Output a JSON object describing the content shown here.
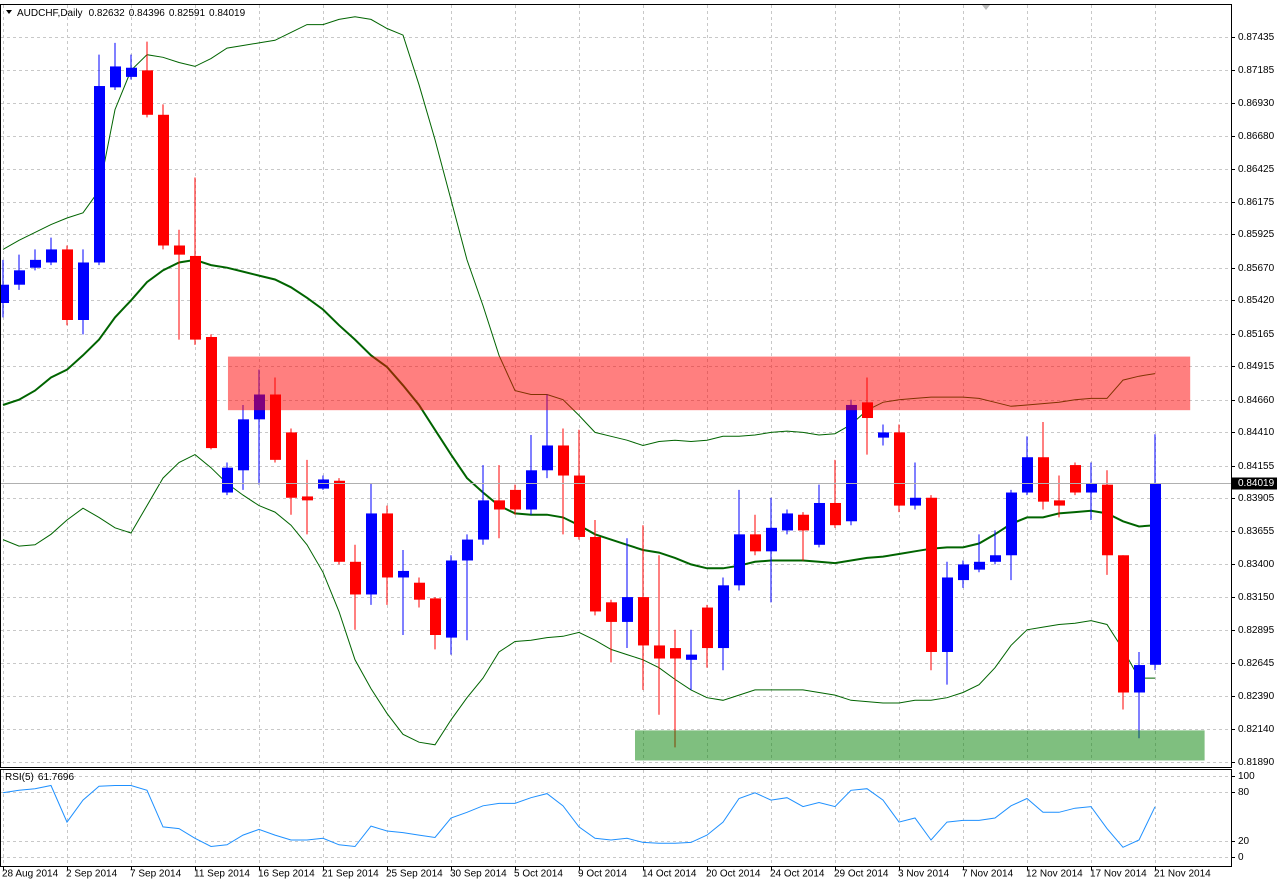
{
  "chart_data": {
    "type": "candlestick",
    "title": "AUDCHF,Daily",
    "up_color": "#0000ff",
    "down_color": "#ff0000",
    "grid": true,
    "categories": [
      "28 Aug 2014",
      null,
      null,
      null,
      "2 Sep 2014",
      null,
      null,
      null,
      "7 Sep 2014",
      null,
      null,
      null,
      "11 Sep 2014",
      null,
      null,
      null,
      "16 Sep 2014",
      null,
      null,
      null,
      "21 Sep 2014",
      null,
      null,
      null,
      "25 Sep 2014",
      null,
      null,
      null,
      "30 Sep 2014",
      null,
      null,
      null,
      "5 Oct 2014",
      null,
      null,
      null,
      "9 Oct 2014",
      null,
      null,
      null,
      "14 Oct 2014",
      null,
      null,
      null,
      "20 Oct 2014",
      null,
      null,
      null,
      "24 Oct 2014",
      null,
      null,
      null,
      "29 Oct 2014",
      null,
      null,
      null,
      "3 Nov 2014",
      null,
      null,
      null,
      "7 Nov 2014",
      null,
      null,
      null,
      "12 Nov 2014",
      null,
      null,
      null,
      "17 Nov 2014",
      null,
      null,
      null,
      "21 Nov 2014"
    ],
    "open": [
      0.854,
      0.8554,
      0.8567,
      0.8571,
      0.8581,
      0.8527,
      0.8571,
      0.8705,
      0.8713,
      0.8718,
      0.8684,
      0.8584,
      0.8576,
      0.8514,
      0.8395,
      0.8412,
      0.8451,
      0.847,
      0.8441,
      0.8392,
      0.8398,
      0.8404,
      0.8342,
      0.8317,
      0.8379,
      0.833,
      0.8326,
      0.8314,
      0.8284,
      0.8343,
      0.8359,
      0.8389,
      0.8397,
      0.8382,
      0.8412,
      0.8431,
      0.8408,
      0.8361,
      0.8311,
      0.8296,
      0.8315,
      0.8278,
      0.8276,
      0.8267,
      0.8307,
      0.8276,
      0.8324,
      0.8363,
      0.835,
      0.8366,
      0.8378,
      0.8355,
      0.8387,
      0.8373,
      0.8464,
      0.8437,
      0.8441,
      0.8385,
      0.8391,
      0.8273,
      0.8328,
      0.8336,
      0.8342,
      0.8347,
      0.8395,
      0.8422,
      0.8389,
      0.8416,
      0.8395,
      0.8401,
      0.8347,
      0.8242,
      0.82632
    ],
    "high": [
      0.8573,
      0.8577,
      0.8581,
      0.859,
      0.8584,
      0.8581,
      0.873,
      0.8739,
      0.873,
      0.874,
      0.8692,
      0.8596,
      0.8636,
      0.8516,
      0.8418,
      0.8462,
      0.8489,
      0.8483,
      0.8444,
      0.842,
      0.8408,
      0.8406,
      0.8355,
      0.8402,
      0.8385,
      0.8351,
      0.833,
      0.8315,
      0.8347,
      0.8363,
      0.8416,
      0.8416,
      0.8401,
      0.8439,
      0.847,
      0.8444,
      0.8443,
      0.8374,
      0.8313,
      0.836,
      0.837,
      0.8347,
      0.829,
      0.829,
      0.8309,
      0.833,
      0.8397,
      0.8378,
      0.8391,
      0.8382,
      0.838,
      0.8401,
      0.842,
      0.8466,
      0.8483,
      0.8447,
      0.8447,
      0.8418,
      0.8393,
      0.8342,
      0.8343,
      0.8363,
      0.8366,
      0.8397,
      0.8438,
      0.8449,
      0.8408,
      0.8418,
      0.8418,
      0.8412,
      0.8347,
      0.8273,
      0.84396
    ],
    "low": [
      0.8529,
      0.855,
      0.8565,
      0.8569,
      0.8523,
      0.8516,
      0.8569,
      0.8703,
      0.8711,
      0.8682,
      0.8581,
      0.8512,
      0.8508,
      0.8428,
      0.8393,
      0.8397,
      0.8401,
      0.8418,
      0.8378,
      0.8363,
      0.8397,
      0.834,
      0.829,
      0.8309,
      0.8309,
      0.8286,
      0.8307,
      0.8275,
      0.8271,
      0.8282,
      0.8355,
      0.836,
      0.8378,
      0.8378,
      0.8406,
      0.8363,
      0.8359,
      0.8301,
      0.8265,
      0.8276,
      0.8244,
      0.8225,
      0.82,
      0.8244,
      0.8261,
      0.8259,
      0.832,
      0.8347,
      0.8311,
      0.8363,
      0.8343,
      0.8353,
      0.8368,
      0.837,
      0.8424,
      0.8431,
      0.838,
      0.8382,
      0.8259,
      0.8248,
      0.8322,
      0.8334,
      0.834,
      0.8328,
      0.8393,
      0.8382,
      0.8376,
      0.8393,
      0.8374,
      0.8332,
      0.8229,
      0.8207,
      0.82591
    ],
    "close": [
      0.8554,
      0.8565,
      0.8573,
      0.8581,
      0.8527,
      0.8571,
      0.8706,
      0.8721,
      0.872,
      0.8684,
      0.8584,
      0.8577,
      0.8512,
      0.8429,
      0.8414,
      0.8451,
      0.847,
      0.842,
      0.8391,
      0.8389,
      0.8405,
      0.8342,
      0.8317,
      0.8379,
      0.833,
      0.8335,
      0.8313,
      0.8286,
      0.8343,
      0.8359,
      0.8389,
      0.8382,
      0.8382,
      0.8412,
      0.8431,
      0.8408,
      0.8361,
      0.8304,
      0.8296,
      0.8315,
      0.8278,
      0.8268,
      0.8268,
      0.8271,
      0.8276,
      0.8324,
      0.8363,
      0.835,
      0.8368,
      0.8379,
      0.8366,
      0.8387,
      0.837,
      0.8462,
      0.8452,
      0.8441,
      0.8385,
      0.8391,
      0.8273,
      0.833,
      0.834,
      0.8342,
      0.8347,
      0.8395,
      0.8422,
      0.8388,
      0.8385,
      0.8395,
      0.8402,
      0.8347,
      0.8242,
      0.8263,
      0.84019
    ],
    "bands": {
      "upper": {
        "color": "#006400",
        "values": [
          0.8581,
          0.8588,
          0.8594,
          0.86,
          0.8605,
          0.8609,
          0.8626,
          0.8688,
          0.8718,
          0.873,
          0.8728,
          0.8724,
          0.8721,
          0.8727,
          0.8735,
          0.8737,
          0.8739,
          0.8741,
          0.8747,
          0.8753,
          0.8753,
          0.8757,
          0.8759,
          0.8757,
          0.875,
          0.8745,
          0.8707,
          0.8665,
          0.8619,
          0.8573,
          0.8538,
          0.85,
          0.8473,
          0.847,
          0.847,
          0.8466,
          0.8454,
          0.8441,
          0.8438,
          0.8435,
          0.8431,
          0.8434,
          0.8435,
          0.8434,
          0.8435,
          0.8438,
          0.8438,
          0.8439,
          0.8441,
          0.8442,
          0.8441,
          0.8439,
          0.844,
          0.8447,
          0.8458,
          0.8464,
          0.8466,
          0.8467,
          0.8468,
          0.8468,
          0.8468,
          0.8467,
          0.8464,
          0.8461,
          0.8462,
          0.8463,
          0.8464,
          0.8466,
          0.8467,
          0.8467,
          0.8481,
          0.8484,
          0.8486
        ]
      },
      "middle": {
        "color": "#006400",
        "values": [
          0.8462,
          0.8466,
          0.8473,
          0.8483,
          0.8489,
          0.85,
          0.8512,
          0.8529,
          0.8542,
          0.8556,
          0.8565,
          0.8571,
          0.8573,
          0.8569,
          0.8567,
          0.8564,
          0.8561,
          0.8558,
          0.8552,
          0.8544,
          0.8535,
          0.8523,
          0.8512,
          0.85,
          0.8491,
          0.8477,
          0.8462,
          0.8443,
          0.8424,
          0.8406,
          0.8395,
          0.8385,
          0.8379,
          0.8378,
          0.8378,
          0.8376,
          0.837,
          0.8363,
          0.8359,
          0.8355,
          0.8351,
          0.8349,
          0.8345,
          0.834,
          0.8337,
          0.8337,
          0.8339,
          0.8342,
          0.8343,
          0.8343,
          0.8343,
          0.8342,
          0.8341,
          0.8343,
          0.8345,
          0.8346,
          0.8348,
          0.835,
          0.8352,
          0.8353,
          0.8353,
          0.8356,
          0.8363,
          0.8371,
          0.8376,
          0.8376,
          0.8379,
          0.838,
          0.8381,
          0.8379,
          0.8373,
          0.8369,
          0.837
        ]
      },
      "lower": {
        "color": "#006400",
        "values": [
          0.8359,
          0.8354,
          0.8355,
          0.8363,
          0.8374,
          0.8383,
          0.8376,
          0.8368,
          0.8364,
          0.8385,
          0.8406,
          0.8418,
          0.8424,
          0.8414,
          0.8402,
          0.8393,
          0.8385,
          0.838,
          0.837,
          0.8355,
          0.8334,
          0.8304,
          0.8267,
          0.8245,
          0.8226,
          0.821,
          0.8204,
          0.8202,
          0.8221,
          0.8238,
          0.8253,
          0.8273,
          0.8281,
          0.8282,
          0.8284,
          0.8285,
          0.8288,
          0.8282,
          0.8275,
          0.8271,
          0.8267,
          0.8261,
          0.8252,
          0.8244,
          0.8238,
          0.8236,
          0.824,
          0.8244,
          0.8244,
          0.8244,
          0.8244,
          0.8242,
          0.824,
          0.8236,
          0.8235,
          0.8234,
          0.8234,
          0.8236,
          0.8236,
          0.8238,
          0.8242,
          0.8248,
          0.8261,
          0.8278,
          0.829,
          0.8292,
          0.8294,
          0.8295,
          0.8297,
          0.8294,
          0.8275,
          0.8253,
          0.8253
        ]
      }
    },
    "zones": [
      {
        "color": "#ff0000",
        "y": [
          0.8458,
          0.8499
        ],
        "x": [
          14.06,
          74.2
        ]
      },
      {
        "color": "#008000",
        "y": [
          0.819,
          0.8213
        ],
        "x": [
          39.5,
          75.1
        ]
      }
    ],
    "ylim": [
      0.8185,
      0.8768
    ],
    "yticks": [
      0.87435,
      0.87185,
      {
        "value": 0.8693,
        "label": "0.86930"
      },
      {
        "value": 0.8668,
        "label": "0.86680"
      },
      0.86425,
      0.86175,
      0.85925,
      {
        "value": 0.8567,
        "label": "0.85670"
      },
      {
        "value": 0.8542,
        "label": "0.85420"
      },
      0.85165,
      0.84915,
      {
        "value": 0.8466,
        "label": "0.84660"
      },
      {
        "value": 0.8441,
        "label": "0.84410"
      },
      0.84155,
      0.83905,
      0.83655,
      {
        "value": 0.834,
        "label": "0.83400"
      },
      {
        "value": 0.8315,
        "label": "0.83150"
      },
      0.82895,
      0.82645,
      {
        "value": 0.8239,
        "label": "0.82390"
      },
      {
        "value": 0.8214,
        "label": "0.82140"
      },
      {
        "value": 0.8189,
        "label": "0.81890"
      }
    ],
    "rsi": {
      "type": "line",
      "title": "RSI(5)",
      "color": "#1e90ff",
      "values": [
        79,
        82,
        84,
        88,
        43,
        70,
        87,
        88,
        88,
        82,
        37,
        35,
        23,
        13,
        15,
        27,
        34,
        27,
        21,
        21,
        23,
        15,
        13,
        38,
        32,
        30,
        27,
        24,
        48,
        55,
        63,
        66,
        66,
        73,
        78,
        63,
        37,
        23,
        21,
        23,
        18,
        17,
        17,
        18,
        27,
        43,
        72,
        79,
        70,
        73,
        62,
        67,
        62,
        82,
        84,
        70,
        43,
        48,
        21,
        43,
        45,
        45,
        48,
        63,
        72,
        55,
        55,
        60,
        62,
        35,
        12,
        21,
        61.7696
      ],
      "ylim": [
        -11,
        107
      ],
      "yticks": [
        100,
        80,
        20,
        0
      ]
    }
  }
}
